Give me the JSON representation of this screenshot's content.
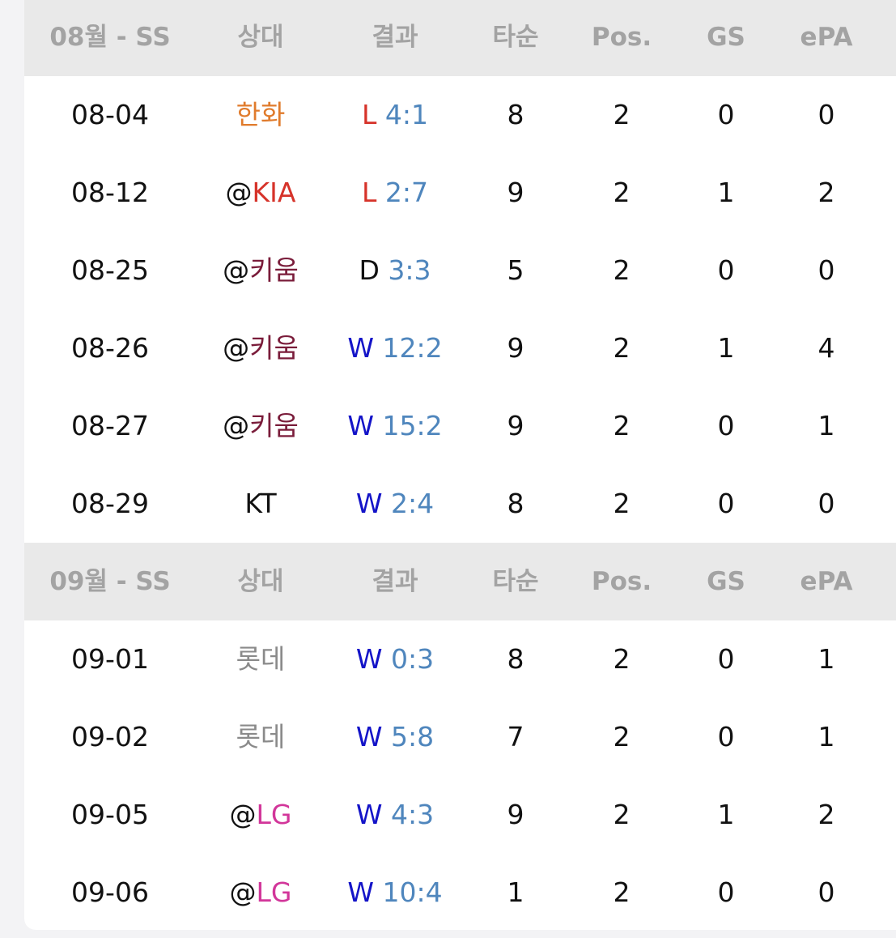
{
  "sections": [
    {
      "header": [
        "08월 - SS",
        "상대",
        "결과",
        "타순",
        "Pos.",
        "GS",
        "ePA"
      ],
      "rows": [
        {
          "date": "08-04",
          "opponent": {
            "team": "한화",
            "color": "#e07b2c"
          },
          "result": {
            "outcome": "L",
            "score": "4:1"
          },
          "order": 8,
          "pos": 2,
          "gs": 0,
          "epa": 0
        },
        {
          "date": "08-12",
          "opponent": {
            "away": "@",
            "team": "KIA",
            "color": "#d6332a"
          },
          "result": {
            "outcome": "L",
            "score": "2:7"
          },
          "order": 9,
          "pos": 2,
          "gs": 1,
          "epa": 2
        },
        {
          "date": "08-25",
          "opponent": {
            "away": "@",
            "team": "키움",
            "color": "#7a1c3a"
          },
          "result": {
            "outcome": "D",
            "score": "3:3"
          },
          "order": 5,
          "pos": 2,
          "gs": 0,
          "epa": 0
        },
        {
          "date": "08-26",
          "opponent": {
            "away": "@",
            "team": "키움",
            "color": "#7a1c3a"
          },
          "result": {
            "outcome": "W",
            "score": "12:2"
          },
          "order": 9,
          "pos": 2,
          "gs": 1,
          "epa": 4
        },
        {
          "date": "08-27",
          "opponent": {
            "away": "@",
            "team": "키움",
            "color": "#7a1c3a"
          },
          "result": {
            "outcome": "W",
            "score": "15:2"
          },
          "order": 9,
          "pos": 2,
          "gs": 0,
          "epa": 1
        },
        {
          "date": "08-29",
          "opponent": {
            "team": "KT",
            "color": "#111111"
          },
          "result": {
            "outcome": "W",
            "score": "2:4"
          },
          "order": 8,
          "pos": 2,
          "gs": 0,
          "epa": 0
        }
      ]
    },
    {
      "header": [
        "09월 - SS",
        "상대",
        "결과",
        "타순",
        "Pos.",
        "GS",
        "ePA"
      ],
      "rows": [
        {
          "date": "09-01",
          "opponent": {
            "team": "롯데",
            "color": "#8a8a8a"
          },
          "result": {
            "outcome": "W",
            "score": "0:3"
          },
          "order": 8,
          "pos": 2,
          "gs": 0,
          "epa": 1
        },
        {
          "date": "09-02",
          "opponent": {
            "team": "롯데",
            "color": "#8a8a8a"
          },
          "result": {
            "outcome": "W",
            "score": "5:8"
          },
          "order": 7,
          "pos": 2,
          "gs": 0,
          "epa": 1
        },
        {
          "date": "09-05",
          "opponent": {
            "away": "@",
            "team": "LG",
            "color": "#d2369a"
          },
          "result": {
            "outcome": "W",
            "score": "4:3"
          },
          "order": 9,
          "pos": 2,
          "gs": 1,
          "epa": 2
        },
        {
          "date": "09-06",
          "opponent": {
            "away": "@",
            "team": "LG",
            "color": "#d2369a"
          },
          "result": {
            "outcome": "W",
            "score": "10:4"
          },
          "order": 1,
          "pos": 2,
          "gs": 0,
          "epa": 0
        }
      ]
    }
  ],
  "outcome_colors": {
    "W": "#1414c8",
    "L": "#d6332a",
    "D": "#111111"
  }
}
